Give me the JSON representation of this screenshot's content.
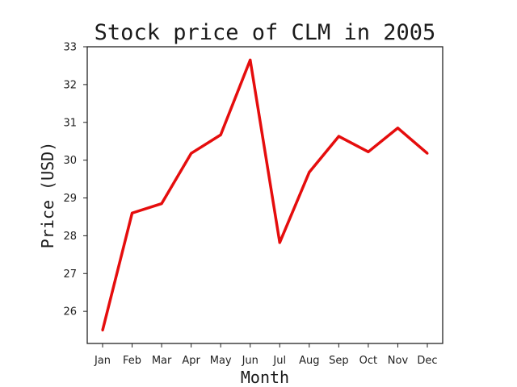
{
  "chart_data": {
    "type": "line",
    "title": "Stock price of CLM in 2005",
    "xlabel": "Month",
    "ylabel": "Price (USD)",
    "categories": [
      "Jan",
      "Feb",
      "Mar",
      "Apr",
      "May",
      "Jun",
      "Jul",
      "Aug",
      "Sep",
      "Oct",
      "Nov",
      "Dec"
    ],
    "series": [
      {
        "values": [
          25.5,
          28.6,
          28.85,
          30.18,
          30.67,
          32.65,
          27.82,
          29.68,
          30.63,
          30.22,
          30.85,
          30.18
        ],
        "color": "#e50d0d"
      }
    ],
    "ylim": [
      25.15,
      33.0
    ],
    "yticks": [
      26,
      27,
      28,
      29,
      30,
      31,
      32,
      33
    ],
    "grid": false,
    "legend": "none"
  }
}
